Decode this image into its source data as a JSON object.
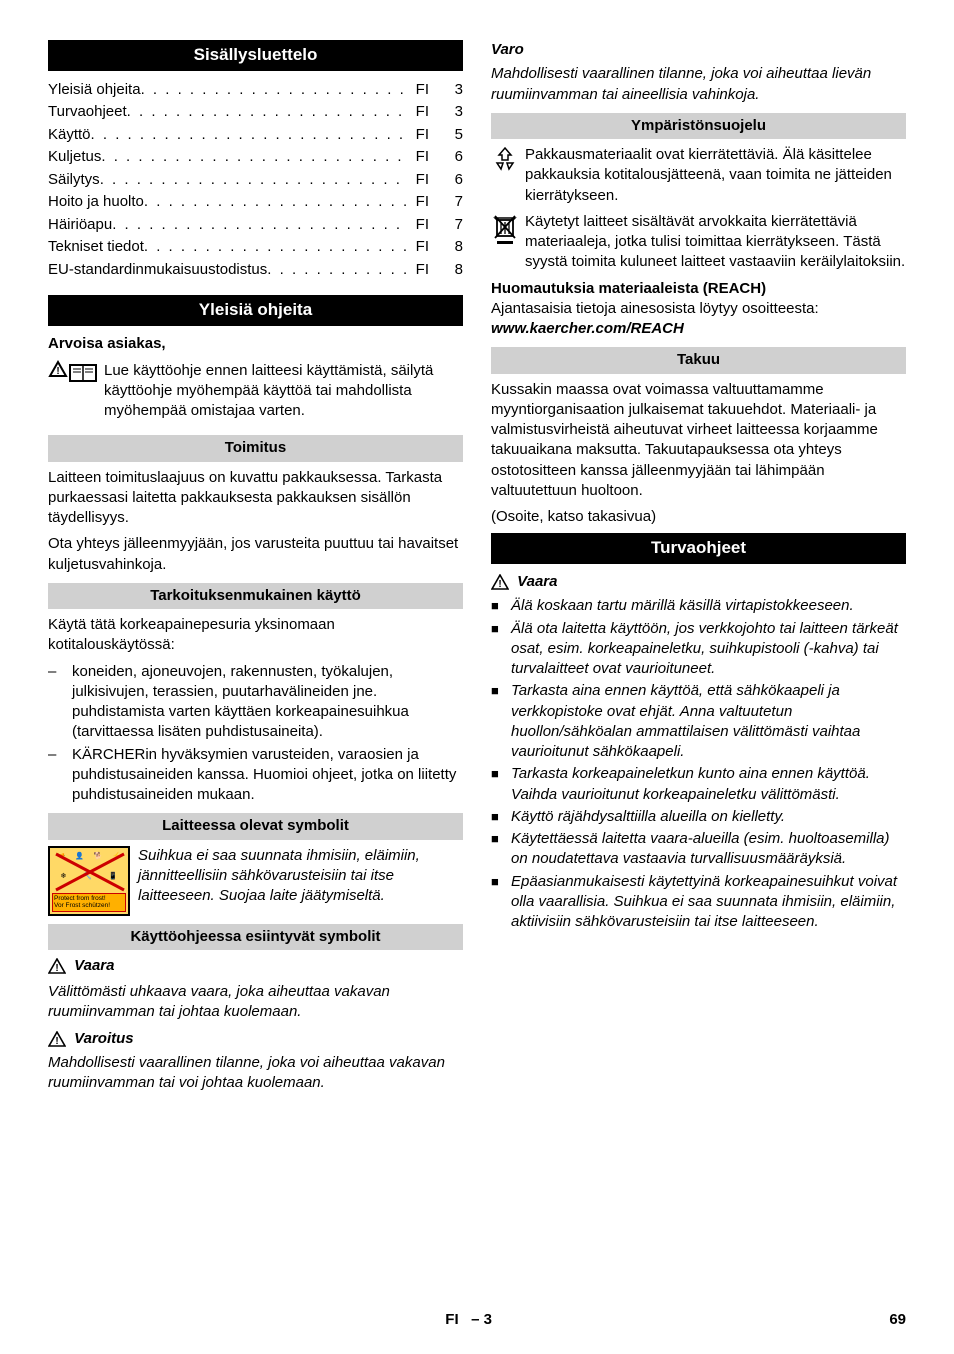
{
  "toc": {
    "title": "Sisällysluettelo",
    "items": [
      {
        "label": "Yleisiä ohjeita",
        "lang": "FI",
        "page": "3"
      },
      {
        "label": "Turvaohjeet",
        "lang": "FI",
        "page": "3"
      },
      {
        "label": "Käyttö",
        "lang": "FI",
        "page": "5"
      },
      {
        "label": "Kuljetus",
        "lang": "FI",
        "page": "6"
      },
      {
        "label": "Säilytys",
        "lang": "FI",
        "page": "6"
      },
      {
        "label": "Hoito ja huolto",
        "lang": "FI",
        "page": "7"
      },
      {
        "label": "Häiriöapu",
        "lang": "FI",
        "page": "7"
      },
      {
        "label": "Tekniset tiedot",
        "lang": "FI",
        "page": "8"
      },
      {
        "label": "EU-standardinmukaisuustodistus",
        "lang": "FI",
        "page": "8"
      }
    ]
  },
  "general": {
    "title": "Yleisiä ohjeita",
    "greeting": "Arvoisa asiakas,",
    "intro": "Lue käyttöohje ennen laitteesi käyttämistä, säilytä käyttöohje myöhempää käyttöä tai mahdollista myöhempää omistajaa varten."
  },
  "delivery": {
    "title": "Toimitus",
    "p1": "Laitteen toimituslaajuus on kuvattu pakkauksessa. Tarkasta purkaessasi laitetta pakkauksesta pakkauksen sisällön täydellisyys.",
    "p2": "Ota yhteys jälleenmyyjään, jos varusteita puuttuu tai havaitset kuljetusvahinkoja."
  },
  "intended": {
    "title": "Tarkoituksenmukainen käyttö",
    "intro": "Käytä tätä korkeapainepesuria yksinomaan kotitalouskäytössä:",
    "items": [
      "koneiden, ajoneuvojen, rakennusten, työkalujen, julkisivujen, terassien, puutarhavälineiden jne. puhdistamista varten käyttäen korkeapainesuihkua (tarvittaessa lisäten puhdistusaineita).",
      "KÄRCHERin hyväksymien varusteiden, varaosien ja puhdistusaineiden kanssa. Huomioi ohjeet, jotka on liitetty puhdistusaineiden mukaan."
    ]
  },
  "symbols_device": {
    "title": "Laitteessa olevat symbolit",
    "text": "Suihkua ei saa suunnata ihmisiin, eläimiin, jännitteellisiin sähkövarusteisiin tai itse laitteeseen. Suojaa laite jäätymiseltä.",
    "frost1": "Protect from frost!",
    "frost2": "Vor Frost schützen!"
  },
  "symbols_manual": {
    "title": "Käyttöohjeessa esiintyvät symbolit",
    "danger": "Vaara",
    "danger_text": "Välittömästi uhkaava vaara, joka aiheuttaa vakavan ruumiinvamman tai johtaa kuolemaan.",
    "warning": "Varoitus",
    "warning_text": "Mahdollisesti vaarallinen tilanne, joka voi aiheuttaa vakavan ruumiinvamman tai voi johtaa kuolemaan.",
    "caution": "Varo",
    "caution_text": "Mahdollisesti vaarallinen tilanne, joka voi aiheuttaa lievän ruumiinvamman tai aineellisia vahinkoja."
  },
  "environment": {
    "title": "Ympäristönsuojelu",
    "p1": "Pakkausmateriaalit ovat kierrätettäviä. Älä käsittelee pakkauksia kotitalousjätteenä, vaan toimita ne jätteiden kierrätykseen.",
    "p2": "Käytetyt laitteet sisältävät arvokkaita kierrätettäviä materiaaleja, jotka tulisi toimittaa kierrätykseen. Tästä syystä toimita kuluneet laitteet vastaaviin keräilylaitoksiin.",
    "reach_title": "Huomautuksia materiaaleista (REACH)",
    "reach_text": "Ajantasaisia tietoja ainesosista löytyy osoitteesta:",
    "reach_url": "www.kaercher.com/REACH"
  },
  "warranty": {
    "title": "Takuu",
    "p1": "Kussakin maassa ovat voimassa valtuuttamamme myyntiorganisaation julkaisemat takuuehdot. Materiaali- ja valmistusvirheistä aiheutuvat virheet laitteessa korjaamme takuuaikana maksutta. Takuutapauksessa ota yhteys ostotositteen kanssa jälleenmyyjään tai lähimpään valtuutettuun huoltoon.",
    "p2": "(Osoite, katso takasivua)"
  },
  "safety": {
    "title": "Turvaohjeet",
    "danger": "Vaara",
    "items": [
      "Älä koskaan tartu märillä käsillä virtapistokkeeseen.",
      "Älä ota laitetta käyttöön, jos verkkojohto tai laitteen tärkeät osat, esim. korkeapaineletku, suihkupistooli (-kahva) tai turvalaitteet ovat vaurioituneet.",
      "Tarkasta aina ennen käyttöä, että sähkökaapeli ja verkkopistoke ovat ehjät. Anna valtuutetun huollon/sähköalan ammattilaisen välittömästi vaihtaa vaurioitunut sähkökaapeli.",
      "Tarkasta korkeapaineletkun kunto aina ennen käyttöä. Vaihda vaurioitunut korkeapaineletku välittömästi.",
      "Käyttö räjähdysalttiilla alueilla on kielletty.",
      "Käytettäessä laitetta vaara-alueilla (esim. huoltoasemilla) on noudatettava vastaavia turvallisuusmääräyksiä.",
      "Epäasianmukaisesti käytettyinä korkeapainesuihkut voivat olla vaarallisia. Suihkua ei saa suunnata ihmisiin, eläimiin, aktiivisiin sähkövarusteisiin tai itse laitteeseen."
    ]
  },
  "footer": {
    "lang": "FI",
    "section": "– 3",
    "page": "69"
  }
}
